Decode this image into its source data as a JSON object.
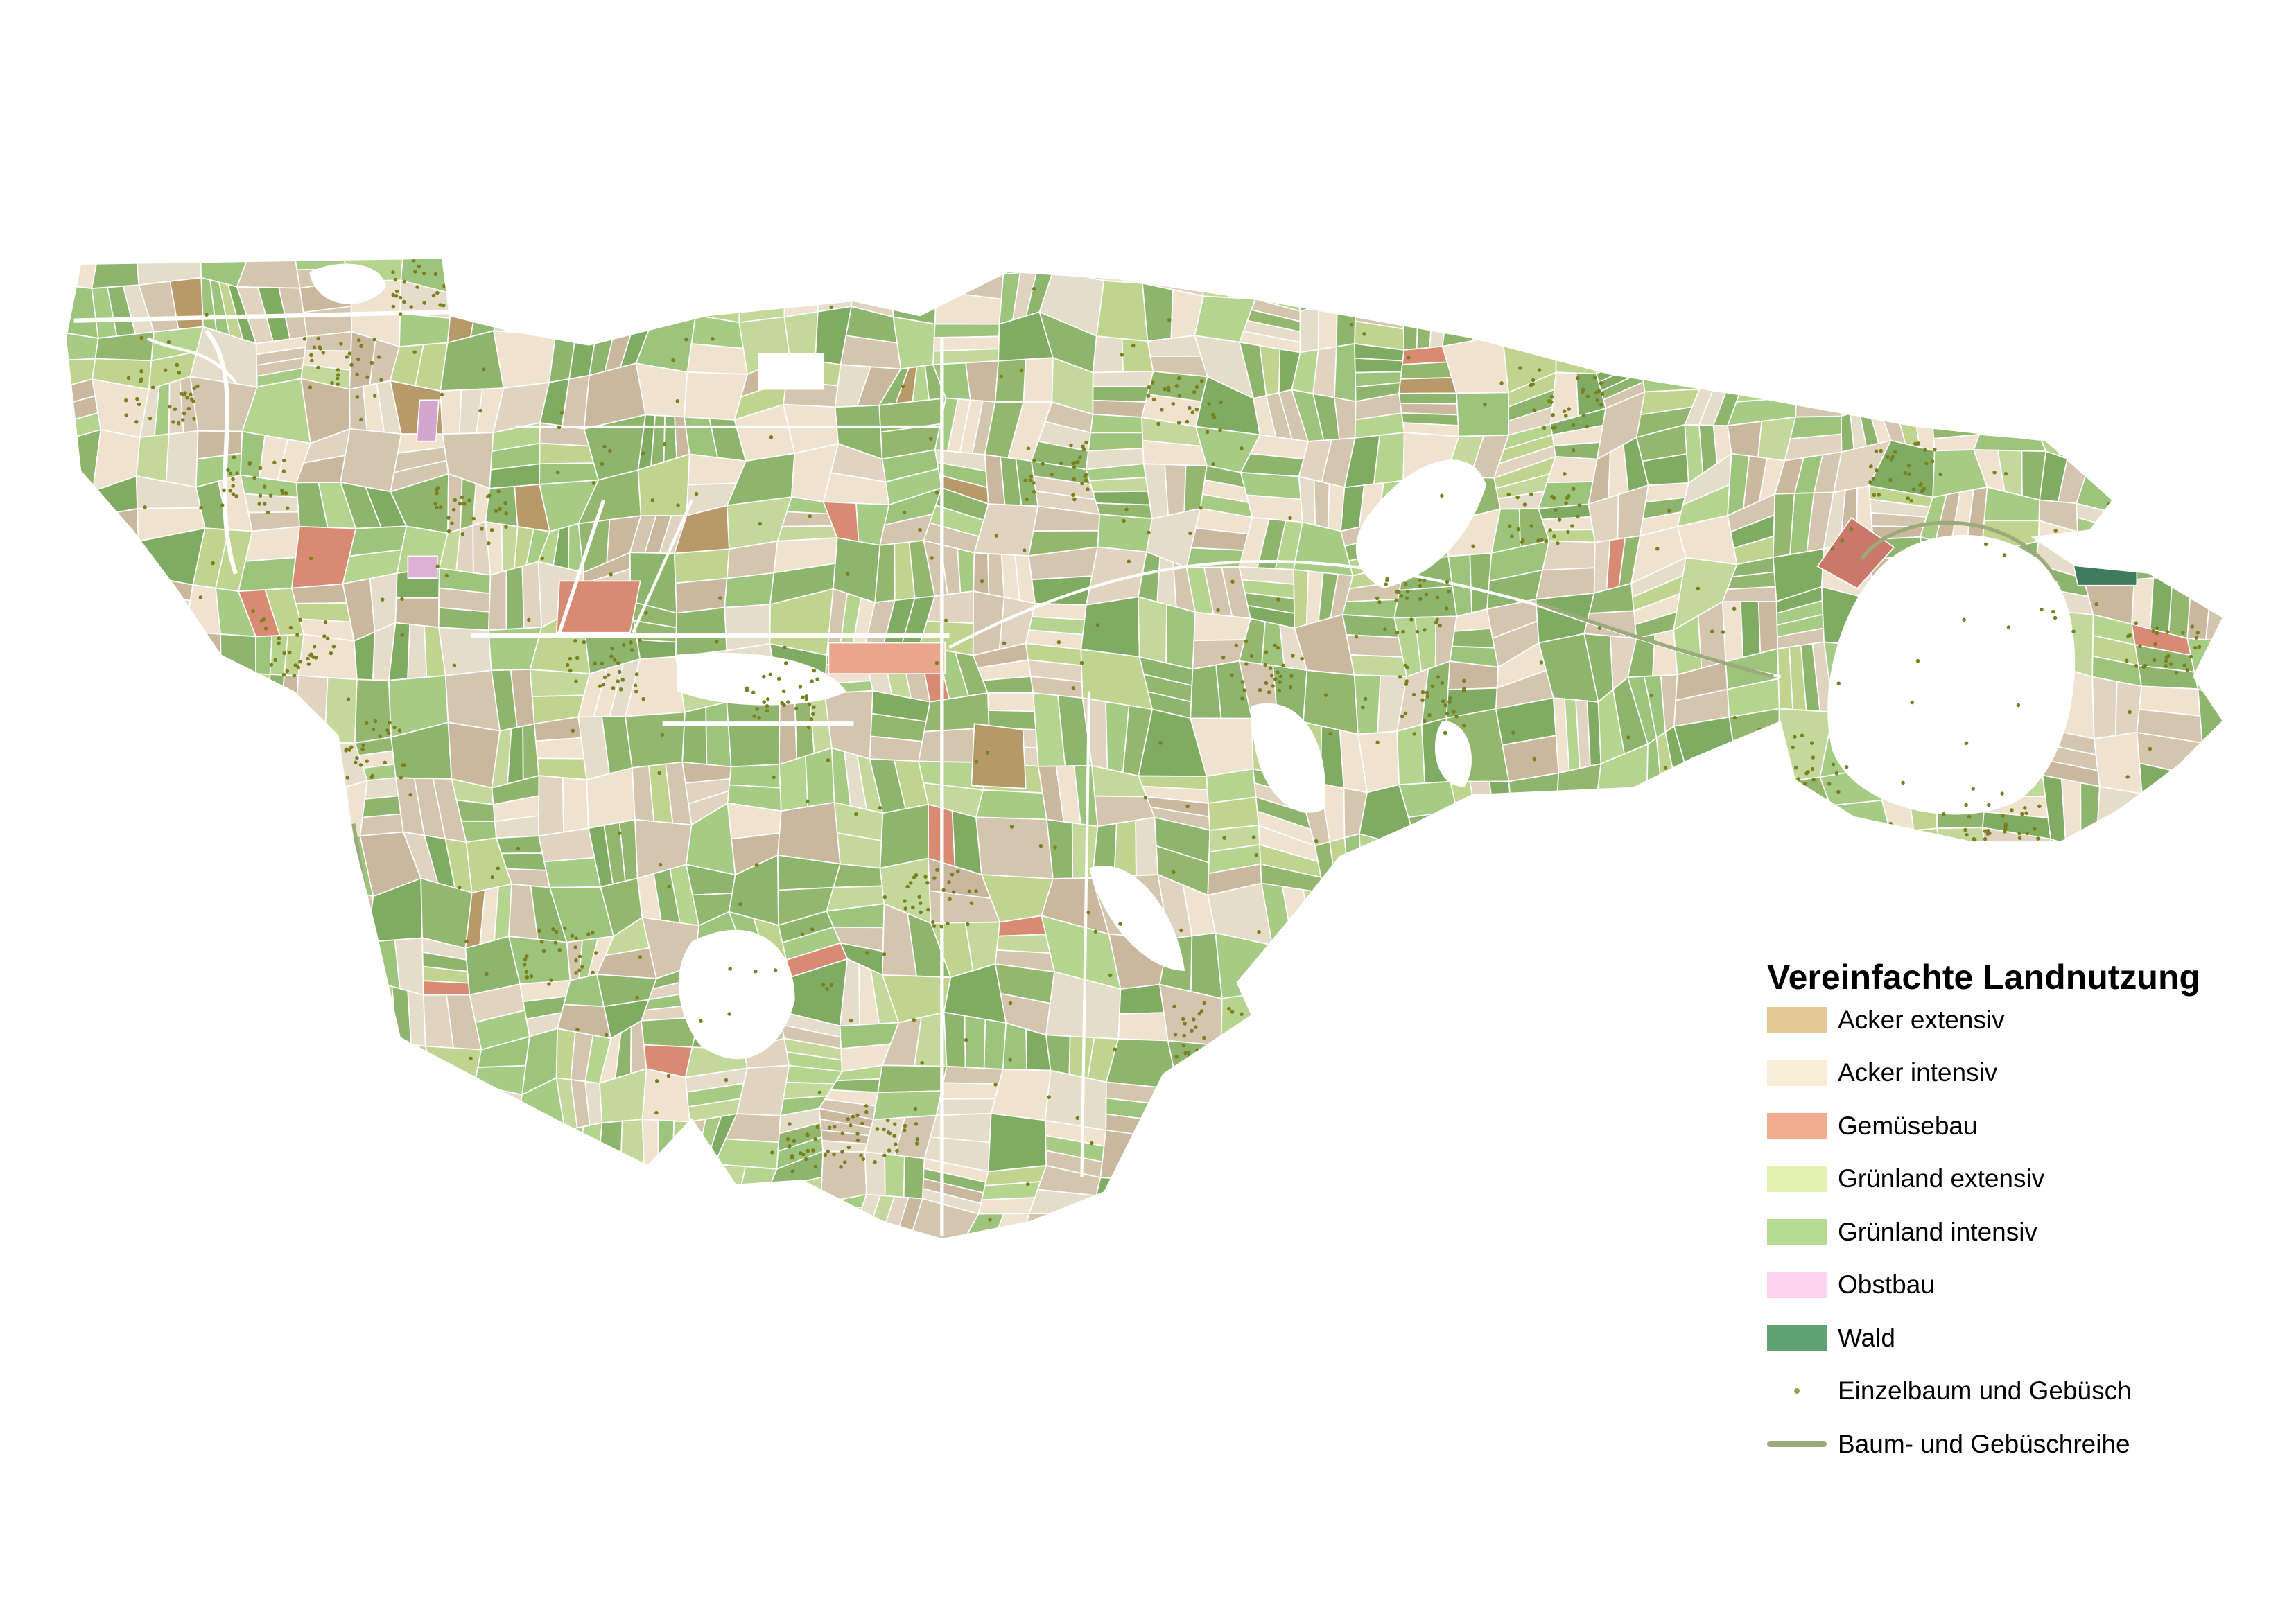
{
  "legend": {
    "title": "Vereinfachte Landnutzung",
    "items": [
      {
        "label": "Acker extensiv",
        "color": "#e3c995",
        "symbol": "fill"
      },
      {
        "label": "Acker intensiv",
        "color": "#f8eed6",
        "symbol": "fill"
      },
      {
        "label": "Gemüsebau",
        "color": "#f2ac90",
        "symbol": "fill"
      },
      {
        "label": "Grünland extensiv",
        "color": "#e3f2b0",
        "symbol": "fill"
      },
      {
        "label": "Grünland intensiv",
        "color": "#b3db91",
        "symbol": "fill"
      },
      {
        "label": "Obstbau",
        "color": "#fed3ef",
        "symbol": "fill"
      },
      {
        "label": "Wald",
        "color": "#5ea173",
        "symbol": "fill"
      },
      {
        "label": "Einzelbaum und Gebüsch",
        "color": "#a0a04a",
        "symbol": "point"
      },
      {
        "label": "Baum- und Gebüschreihe",
        "color": "#9aaa7a",
        "symbol": "line"
      }
    ]
  }
}
